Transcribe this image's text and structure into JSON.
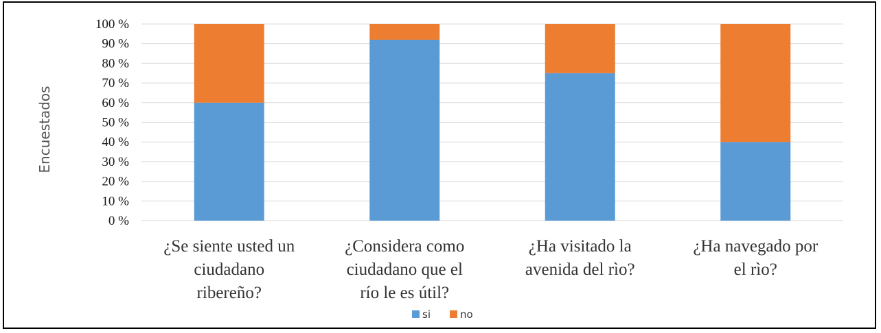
{
  "chart_data": {
    "type": "bar",
    "stacked": true,
    "categories": [
      [
        "¿Se siente usted un",
        "ciudadano",
        "ribereño?"
      ],
      [
        "¿Considera como",
        "ciudadano que el",
        "río le es útil?"
      ],
      [
        "¿Ha visitado la",
        "avenida del rìo?"
      ],
      [
        "¿Ha navegado por",
        "el rìo?"
      ]
    ],
    "series": [
      {
        "name": "si",
        "color": "#5b9bd5",
        "values": [
          60,
          92,
          75,
          40
        ]
      },
      {
        "name": "no",
        "color": "#ed7d31",
        "values": [
          40,
          8,
          25,
          60
        ]
      }
    ],
    "ylabel": "Encuestados",
    "ylim": [
      0,
      100
    ],
    "yticks": [
      "0 %",
      "10 %",
      "20 %",
      "30 %",
      "40 %",
      "50 %",
      "60 %",
      "70 %",
      "80 %",
      "90 %",
      "100 %"
    ],
    "grid": true,
    "legend_position": "bottom"
  }
}
